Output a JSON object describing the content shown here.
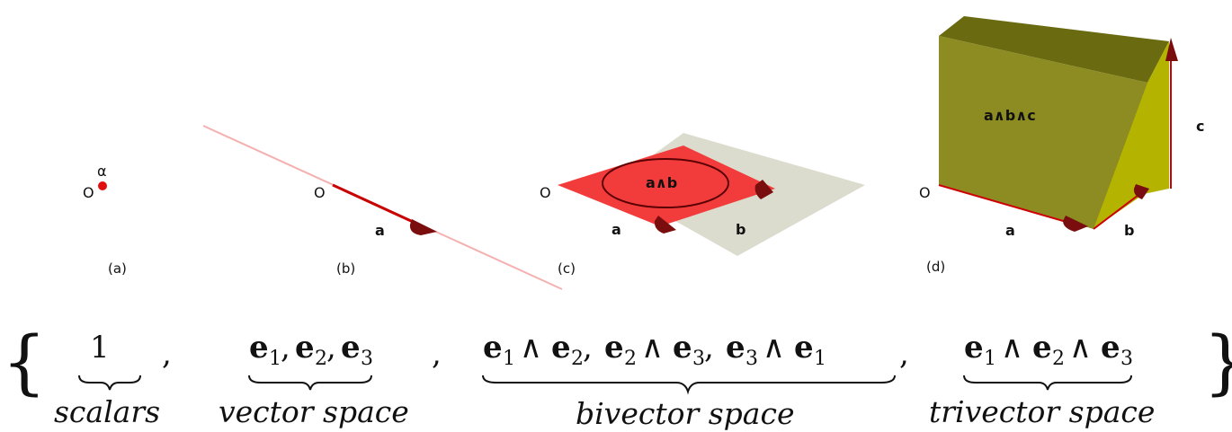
{
  "panels": {
    "a": {
      "caption": "(a)",
      "origin": "O",
      "point_label": "α"
    },
    "b": {
      "caption": "(b)",
      "origin": "O",
      "vec_a": "a"
    },
    "c": {
      "caption": "(c)",
      "origin": "O",
      "vec_a": "a",
      "vec_b": "b",
      "plane_label": "a∧b"
    },
    "d": {
      "caption": "(d)",
      "origin": "O",
      "vec_a": "a",
      "vec_b": "b",
      "vec_c": "c",
      "cube_label": "a∧b∧c"
    }
  },
  "equation": {
    "open_brace": "{",
    "close_brace": "}",
    "scalars_term": "1",
    "scalars_label": "scalars",
    "vector_label": "vector space",
    "bivector_label": "bivector space",
    "trivector_label": "trivector space",
    "comma": ","
  },
  "colors": {
    "plane_red": "#f23c3c",
    "plane_gray": "#dcdcce",
    "cube_front": "#8c8c22",
    "cube_top": "#6a6a10",
    "cube_side": "#b4b400",
    "arrow": "#8a1010",
    "line_red": "#cc0000"
  }
}
